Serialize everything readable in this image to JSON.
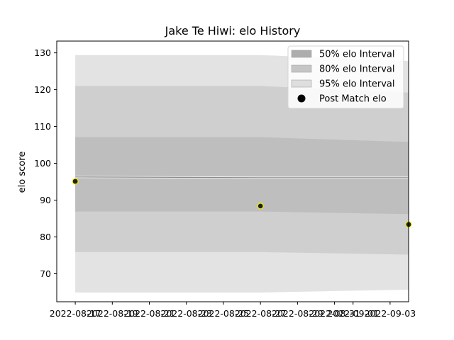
{
  "chart_data": {
    "type": "line",
    "title": "Jake Te Hiwi: elo History",
    "xlabel": "",
    "ylabel": "elo score",
    "ylim": [
      62.4,
      133.2
    ],
    "yticks": [
      70,
      80,
      90,
      100,
      110,
      120,
      130
    ],
    "xlim": [
      "2022-08-16",
      "2022-09-04"
    ],
    "xticks": [
      "2022-08-17",
      "2022-08-19",
      "2022-08-21",
      "2022-08-23",
      "2022-08-25",
      "2022-08-27",
      "2022-08-29",
      "2022-08-31",
      "2022-09-01",
      "2022-09-03"
    ],
    "dates": [
      "2022-08-17",
      "2022-08-27",
      "2022-09-04"
    ],
    "mean": [
      96.3,
      96.1,
      96.1
    ],
    "bands": [
      {
        "name": "95% elo Interval",
        "color": "#e3e3e3",
        "lower": [
          64.9,
          64.9,
          65.7
        ],
        "upper": [
          129.4,
          129.4,
          127.8
        ]
      },
      {
        "name": "80% elo Interval",
        "color": "#cfcfcf",
        "lower": [
          75.9,
          75.9,
          75.2
        ],
        "upper": [
          121.0,
          121.0,
          119.2
        ]
      },
      {
        "name": "50% elo Interval",
        "color": "#bebebe",
        "lower": [
          86.9,
          86.9,
          86.2
        ],
        "upper": [
          107.1,
          107.1,
          105.8
        ]
      }
    ],
    "points": {
      "name": "Post Match elo",
      "dates": [
        "2022-08-17",
        "2022-08-27",
        "2022-09-04"
      ],
      "values": [
        95.1,
        88.4,
        83.4
      ],
      "fill": "#222222",
      "edge": "#f2f200"
    },
    "legend": {
      "position": "top-right",
      "entries": [
        {
          "label": "50% elo Interval",
          "color": "#adadad",
          "kind": "patch"
        },
        {
          "label": "80% elo Interval",
          "color": "#c5c5c5",
          "kind": "patch"
        },
        {
          "label": "95% elo Interval",
          "color": "#dedede",
          "kind": "patch"
        },
        {
          "label": "Post Match elo",
          "color": "#000000",
          "kind": "marker"
        }
      ]
    }
  }
}
